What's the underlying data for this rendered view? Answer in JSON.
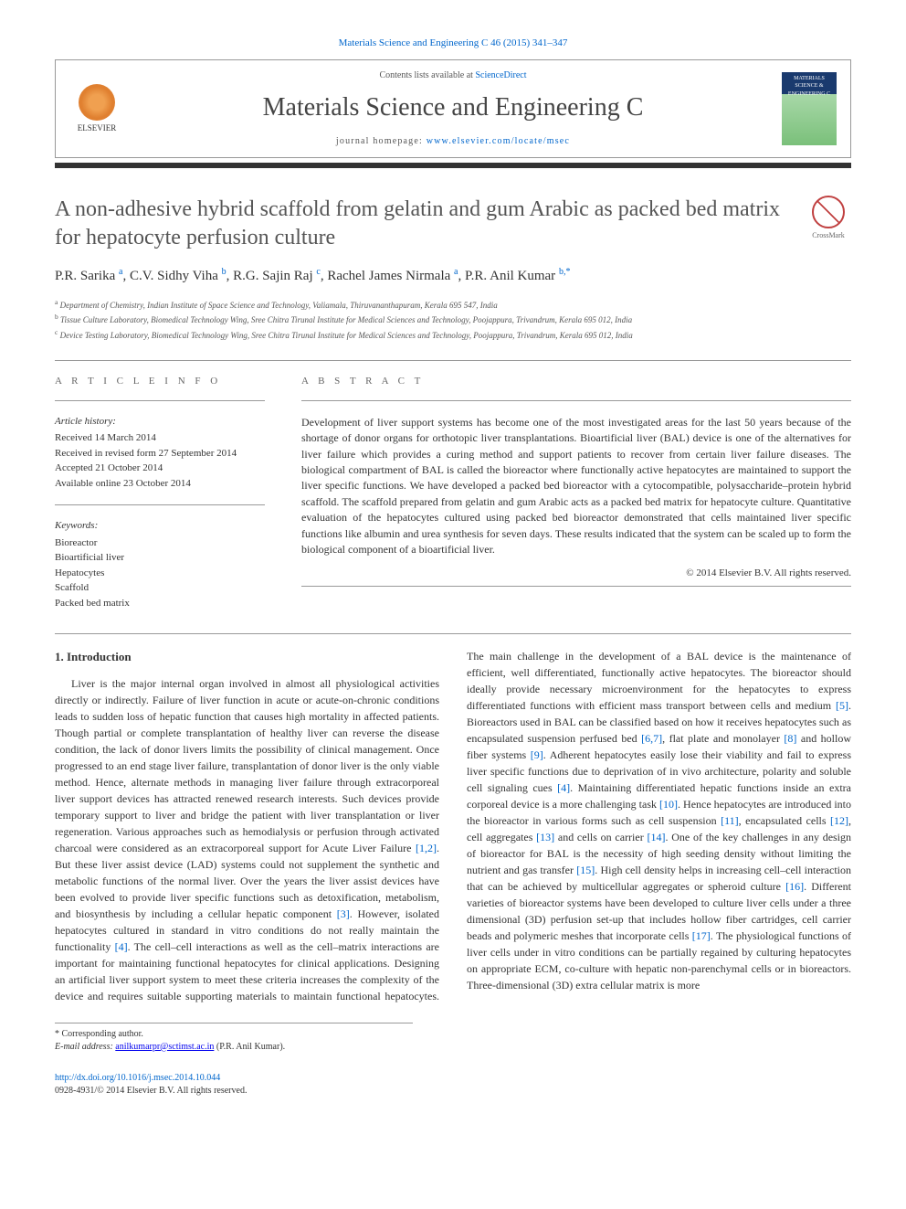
{
  "citation": "Materials Science and Engineering C 46 (2015) 341–347",
  "header": {
    "contents_prefix": "Contents lists available at ",
    "contents_link": "ScienceDirect",
    "journal": "Materials Science and Engineering C",
    "homepage_prefix": "journal homepage: ",
    "homepage_url": "www.elsevier.com/locate/msec",
    "publisher": "ELSEVIER",
    "cover_text": "MATERIALS SCIENCE & ENGINEERING C"
  },
  "title": "A non-adhesive hybrid scaffold from gelatin and gum Arabic as packed bed matrix for hepatocyte perfusion culture",
  "crossmark_label": "CrossMark",
  "authors_html": "P.R. Sarika <sup>a</sup>, C.V. Sidhy Viha <sup>b</sup>, R.G. Sajin Raj <sup>c</sup>, Rachel James Nirmala <sup>a</sup>, P.R. Anil Kumar <sup>b,*</sup>",
  "affiliations": [
    {
      "sup": "a",
      "text": "Department of Chemistry, Indian Institute of Space Science and Technology, Valiamala, Thiruvananthapuram, Kerala 695 547, India"
    },
    {
      "sup": "b",
      "text": "Tissue Culture Laboratory, Biomedical Technology Wing, Sree Chitra Tirunal Institute for Medical Sciences and Technology, Poojappura, Trivandrum, Kerala 695 012, India"
    },
    {
      "sup": "c",
      "text": "Device Testing Laboratory, Biomedical Technology Wing, Sree Chitra Tirunal Institute for Medical Sciences and Technology, Poojappura, Trivandrum, Kerala 695 012, India"
    }
  ],
  "article_info": {
    "label": "A R T I C L E   I N F O",
    "history_head": "Article history:",
    "history": [
      "Received 14 March 2014",
      "Received in revised form 27 September 2014",
      "Accepted 21 October 2014",
      "Available online 23 October 2014"
    ],
    "keywords_head": "Keywords:",
    "keywords": [
      "Bioreactor",
      "Bioartificial liver",
      "Hepatocytes",
      "Scaffold",
      "Packed bed matrix"
    ]
  },
  "abstract": {
    "label": "A B S T R A C T",
    "text": "Development of liver support systems has become one of the most investigated areas for the last 50 years because of the shortage of donor organs for orthotopic liver transplantations. Bioartificial liver (BAL) device is one of the alternatives for liver failure which provides a curing method and support patients to recover from certain liver failure diseases. The biological compartment of BAL is called the bioreactor where functionally active hepatocytes are maintained to support the liver specific functions. We have developed a packed bed bioreactor with a cytocompatible, polysaccharide–protein hybrid scaffold. The scaffold prepared from gelatin and gum Arabic acts as a packed bed matrix for hepatocyte culture. Quantitative evaluation of the hepatocytes cultured using packed bed bioreactor demonstrated that cells maintained liver specific functions like albumin and urea synthesis for seven days. These results indicated that the system can be scaled up to form the biological component of a bioartificial liver.",
    "copyright": "© 2014 Elsevier B.V. All rights reserved."
  },
  "intro": {
    "heading": "1. Introduction",
    "para1": "Liver is the major internal organ involved in almost all physiological activities directly or indirectly. Failure of liver function in acute or acute-on-chronic conditions leads to sudden loss of hepatic function that causes high mortality in affected patients. Though partial or complete transplantation of healthy liver can reverse the disease condition, the lack of donor livers limits the possibility of clinical management. Once progressed to an end stage liver failure, transplantation of donor liver is the only viable method. Hence, alternate methods in managing liver failure through extracorporeal liver support devices has attracted renewed research interests. Such devices provide temporary support to liver and bridge the patient with liver transplantation or liver regeneration. Various approaches such as hemodialysis or perfusion through activated charcoal were considered as an extracorporeal support for Acute Liver Failure ",
    "ref1": "[1,2]",
    "para1b": ". But these liver assist device (LAD) systems could not supplement the synthetic and metabolic functions of the normal liver. Over the years the liver assist devices have been evolved to provide liver specific functions such as detoxification, metabolism, and biosynthesis by including a cellular hepatic component ",
    "ref2": "[3]",
    "para1c": ". However, isolated hepatocytes cultured in standard in vitro conditions do not really maintain the functionality ",
    "ref3": "[4]",
    "para1d": ". The cell–cell interactions as well as the cell–matrix interactions are important for maintaining functional hepatocytes for clinical applications. Designing an artificial liver support ",
    "para2": "system to meet these criteria increases the complexity of the device and requires suitable supporting materials to maintain functional hepatocytes. The main challenge in the development of a BAL device is the maintenance of efficient, well differentiated, functionally active hepatocytes. The bioreactor should ideally provide necessary microenvironment for the hepatocytes to express differentiated functions with efficient mass transport between cells and medium ",
    "ref4": "[5]",
    "para2b": ". Bioreactors used in BAL can be classified based on how it receives hepatocytes such as encapsulated suspension perfused bed ",
    "ref5": "[6,7]",
    "para2c": ", flat plate and monolayer ",
    "ref6": "[8]",
    "para2d": " and hollow fiber systems ",
    "ref7": "[9]",
    "para2e": ". Adherent hepatocytes easily lose their viability and fail to express liver specific functions due to deprivation of in vivo architecture, polarity and soluble cell signaling cues ",
    "ref8": "[4]",
    "para2f": ". Maintaining differentiated hepatic functions inside an extra corporeal device is a more challenging task ",
    "ref9": "[10]",
    "para2g": ". Hence hepatocytes are introduced into the bioreactor in various forms such as cell suspension ",
    "ref10": "[11]",
    "para2h": ", encapsulated cells ",
    "ref11": "[12]",
    "para2i": ", cell aggregates ",
    "ref12": "[13]",
    "para2j": " and cells on carrier ",
    "ref13": "[14]",
    "para2k": ". One of the key challenges in any design of bioreactor for BAL is the necessity of high seeding density without limiting the nutrient and gas transfer ",
    "ref14": "[15]",
    "para2l": ". High cell density helps in increasing cell–cell interaction that can be achieved by multicellular aggregates or spheroid culture ",
    "ref15": "[16]",
    "para2m": ". Different varieties of bioreactor systems have been developed to culture liver cells under a three dimensional (3D) perfusion set-up that includes hollow fiber cartridges, cell carrier beads and polymeric meshes that incorporate cells ",
    "ref16": "[17]",
    "para2n": ". The physiological functions of liver cells under in vitro conditions can be partially regained by culturing hepatocytes on appropriate ECM, co-culture with hepatic non-parenchymal cells or in bioreactors. Three-dimensional (3D) extra cellular matrix is more"
  },
  "footnote": {
    "corr_label": "* Corresponding author.",
    "email_label": "E-mail address: ",
    "email": "anilkumarpr@sctimst.ac.in",
    "email_name": " (P.R. Anil Kumar)."
  },
  "footer": {
    "doi": "http://dx.doi.org/10.1016/j.msec.2014.10.044",
    "issn_line": "0928-4931/© 2014 Elsevier B.V. All rights reserved."
  },
  "colors": {
    "link": "#0066cc",
    "text": "#333333",
    "muted": "#555555",
    "rule": "#999999"
  }
}
